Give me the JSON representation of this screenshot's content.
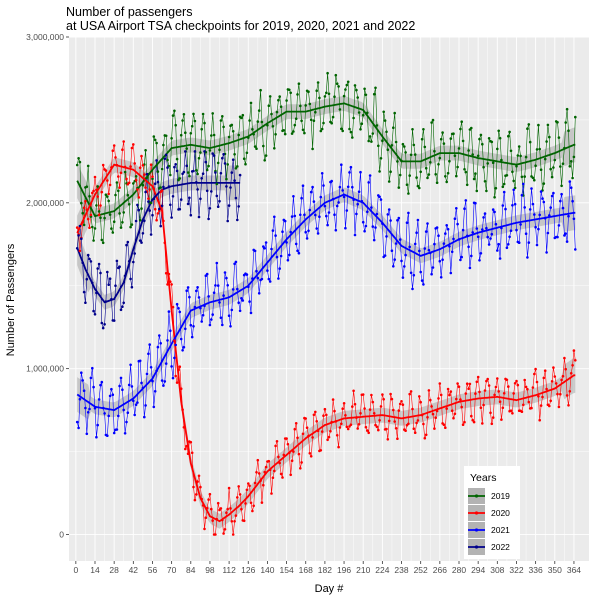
{
  "chart_data": {
    "type": "line",
    "title": "Number of passengers",
    "subtitle": "at USA Airport TSA checkpoints for 2019, 2020, 2021 and 2022",
    "xlabel": "Day #",
    "ylabel": "Number of Passengers",
    "xlim": [
      -5,
      375
    ],
    "ylim": [
      -160000,
      3000000
    ],
    "x_ticks": [
      0,
      14,
      28,
      42,
      56,
      70,
      84,
      98,
      112,
      126,
      140,
      154,
      168,
      182,
      196,
      210,
      224,
      238,
      252,
      266,
      280,
      294,
      308,
      322,
      336,
      350,
      364
    ],
    "y_ticks": [
      0,
      1000000,
      2000000,
      3000000
    ],
    "y_tick_labels": [
      "0",
      "1,000,000",
      "2,000,000",
      "3,000,000"
    ],
    "grid": true,
    "legend": {
      "title": "Years",
      "position": "bottom-right"
    },
    "series": [
      {
        "name": "2019",
        "color": "#006400",
        "x_range": [
          1,
          365
        ],
        "trend": [
          [
            0,
            2150000
          ],
          [
            14,
            1920000
          ],
          [
            28,
            1950000
          ],
          [
            42,
            2050000
          ],
          [
            56,
            2200000
          ],
          [
            70,
            2330000
          ],
          [
            84,
            2350000
          ],
          [
            98,
            2330000
          ],
          [
            112,
            2360000
          ],
          [
            126,
            2400000
          ],
          [
            140,
            2480000
          ],
          [
            154,
            2550000
          ],
          [
            168,
            2550000
          ],
          [
            182,
            2580000
          ],
          [
            196,
            2600000
          ],
          [
            210,
            2560000
          ],
          [
            224,
            2400000
          ],
          [
            238,
            2250000
          ],
          [
            252,
            2250000
          ],
          [
            266,
            2300000
          ],
          [
            280,
            2300000
          ],
          [
            294,
            2270000
          ],
          [
            308,
            2250000
          ],
          [
            322,
            2230000
          ],
          [
            336,
            2260000
          ],
          [
            350,
            2300000
          ],
          [
            364,
            2350000
          ]
        ],
        "spread": 220000,
        "min": 1620000,
        "max": 2870000
      },
      {
        "name": "2020",
        "color": "#ff0000",
        "x_range": [
          1,
          365
        ],
        "trend": [
          [
            0,
            1800000
          ],
          [
            14,
            2050000
          ],
          [
            28,
            2230000
          ],
          [
            42,
            2200000
          ],
          [
            56,
            2100000
          ],
          [
            63,
            1950000
          ],
          [
            70,
            1350000
          ],
          [
            77,
            800000
          ],
          [
            84,
            430000
          ],
          [
            91,
            220000
          ],
          [
            98,
            110000
          ],
          [
            105,
            80000
          ],
          [
            112,
            120000
          ],
          [
            119,
            170000
          ],
          [
            126,
            230000
          ],
          [
            140,
            380000
          ],
          [
            154,
            480000
          ],
          [
            168,
            580000
          ],
          [
            182,
            660000
          ],
          [
            196,
            700000
          ],
          [
            210,
            710000
          ],
          [
            224,
            720000
          ],
          [
            238,
            700000
          ],
          [
            252,
            720000
          ],
          [
            266,
            760000
          ],
          [
            280,
            800000
          ],
          [
            294,
            820000
          ],
          [
            308,
            830000
          ],
          [
            322,
            810000
          ],
          [
            336,
            840000
          ],
          [
            350,
            880000
          ],
          [
            364,
            960000
          ]
        ],
        "spread": 150000,
        "min": 0,
        "max": 2520000
      },
      {
        "name": "2021",
        "color": "#0000ff",
        "x_range": [
          1,
          365
        ],
        "trend": [
          [
            0,
            850000
          ],
          [
            14,
            770000
          ],
          [
            28,
            750000
          ],
          [
            42,
            820000
          ],
          [
            56,
            940000
          ],
          [
            70,
            1150000
          ],
          [
            84,
            1350000
          ],
          [
            98,
            1400000
          ],
          [
            112,
            1430000
          ],
          [
            126,
            1500000
          ],
          [
            140,
            1640000
          ],
          [
            154,
            1780000
          ],
          [
            168,
            1900000
          ],
          [
            182,
            2000000
          ],
          [
            196,
            2050000
          ],
          [
            210,
            2000000
          ],
          [
            224,
            1880000
          ],
          [
            238,
            1740000
          ],
          [
            252,
            1680000
          ],
          [
            266,
            1720000
          ],
          [
            280,
            1780000
          ],
          [
            294,
            1820000
          ],
          [
            308,
            1850000
          ],
          [
            322,
            1880000
          ],
          [
            336,
            1900000
          ],
          [
            350,
            1920000
          ],
          [
            364,
            1940000
          ]
        ],
        "spread": 210000,
        "min": 470000,
        "max": 2230000
      },
      {
        "name": "2022",
        "color": "#00008b",
        "x_range": [
          1,
          120
        ],
        "trend": [
          [
            0,
            1750000
          ],
          [
            7,
            1600000
          ],
          [
            14,
            1480000
          ],
          [
            21,
            1400000
          ],
          [
            28,
            1420000
          ],
          [
            35,
            1520000
          ],
          [
            42,
            1720000
          ],
          [
            49,
            1900000
          ],
          [
            56,
            2020000
          ],
          [
            63,
            2080000
          ],
          [
            70,
            2100000
          ],
          [
            84,
            2120000
          ],
          [
            98,
            2120000
          ],
          [
            112,
            2120000
          ],
          [
            120,
            2120000
          ]
        ],
        "spread": 220000,
        "min": 1050000,
        "max": 2310000
      }
    ]
  }
}
